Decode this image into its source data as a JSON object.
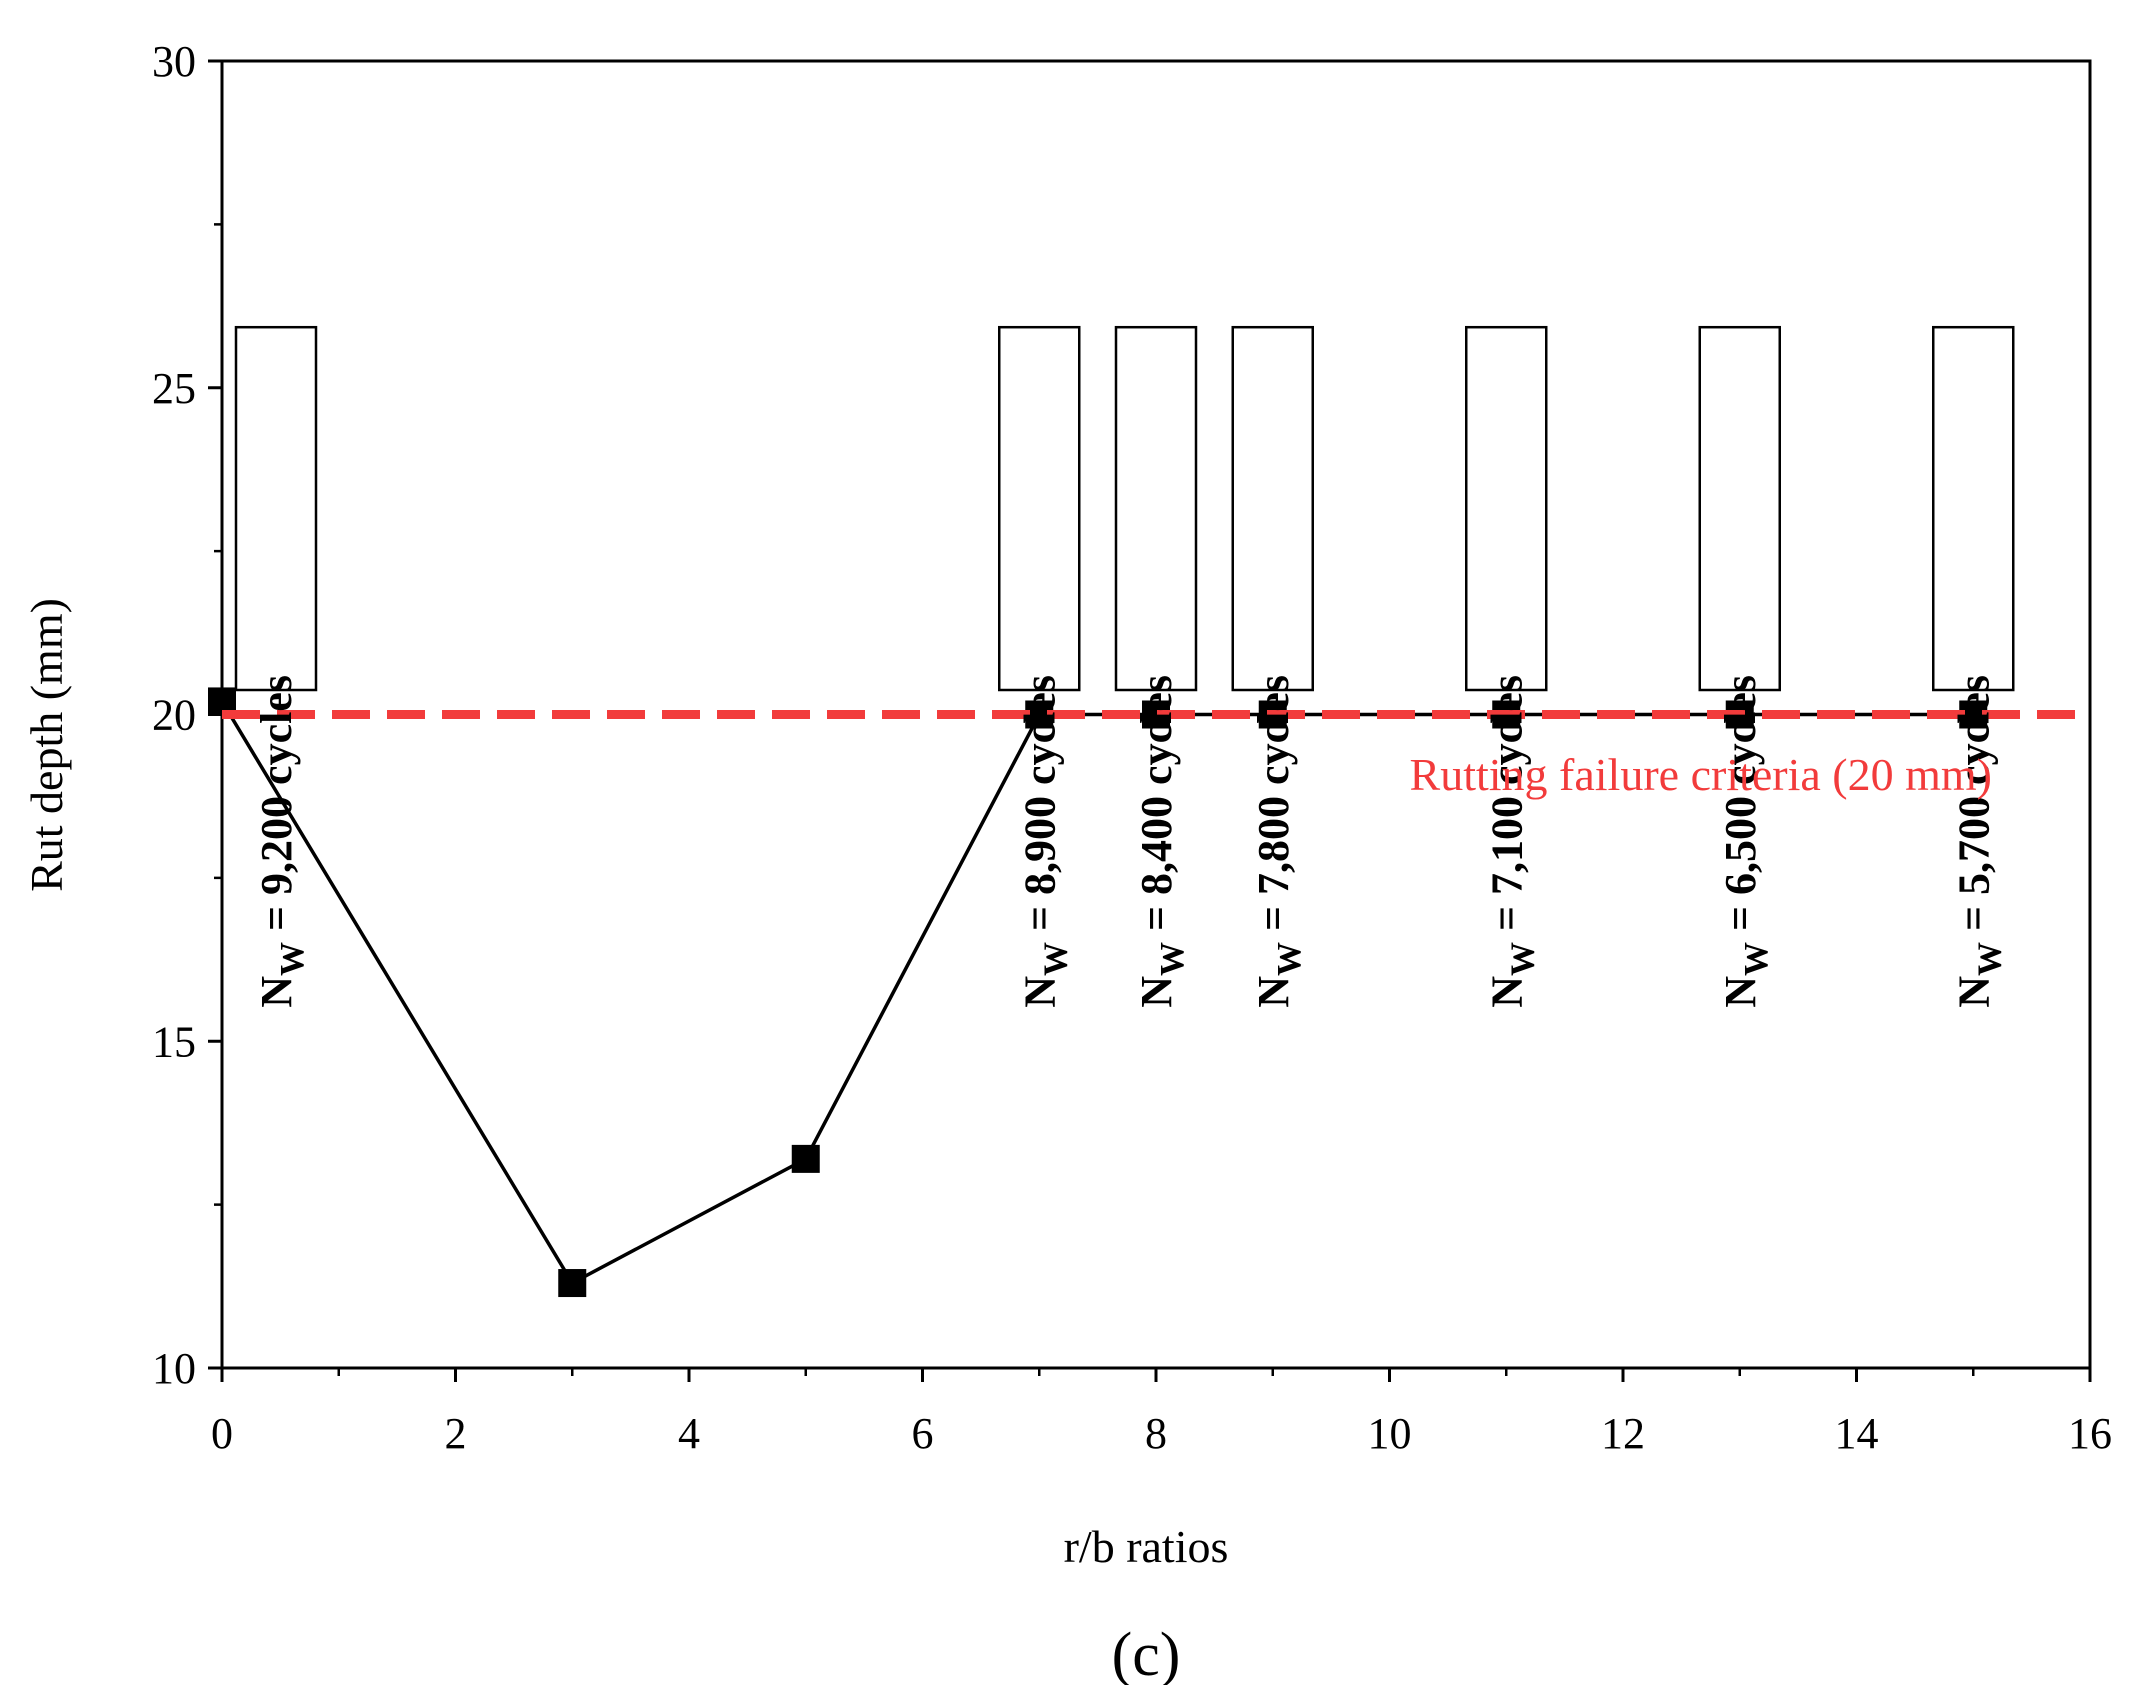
{
  "chart_data": {
    "type": "line",
    "title": "",
    "xlabel": "r/b ratios",
    "ylabel": "Rut depth (mm)",
    "panel_label": "(c)",
    "xlim": [
      0,
      16
    ],
    "ylim": [
      10,
      30
    ],
    "x_major_ticks": [
      0,
      2,
      4,
      6,
      8,
      10,
      12,
      14,
      16
    ],
    "x_tick_labels": [
      "0",
      "2",
      "4",
      "6",
      "8",
      "10",
      "12",
      "14",
      "16"
    ],
    "x_minor_ticks": [
      1,
      3,
      5,
      7,
      9,
      11,
      13,
      15
    ],
    "y_major_ticks": [
      10,
      15,
      20,
      25,
      30
    ],
    "y_tick_labels": [
      "10",
      "15",
      "20",
      "25",
      "30"
    ],
    "y_minor_ticks": [
      12.5,
      17.5,
      22.5,
      27.5
    ],
    "grid": false,
    "series": [
      {
        "name": "Rut depth",
        "color": "#000000",
        "marker": "square",
        "x": [
          0,
          3,
          5,
          7,
          8,
          9,
          11,
          13,
          15
        ],
        "y": [
          20.2,
          11.3,
          13.2,
          20.0,
          20.0,
          20.0,
          20.0,
          20.0,
          20.0
        ]
      }
    ],
    "reference_line": {
      "y": 20,
      "color": "#f23b3b",
      "style": "dashed",
      "label": "Rutting failure criteria (20 mm)"
    },
    "annotations": [
      {
        "x": 0,
        "prefix": "N",
        "subscript": "W",
        "text": " = 9,200 cycles"
      },
      {
        "x": 7,
        "prefix": "N",
        "subscript": "W",
        "text": " = 8,900 cycles"
      },
      {
        "x": 8,
        "prefix": "N",
        "subscript": "W",
        "text": " = 8,400 cycles"
      },
      {
        "x": 9,
        "prefix": "N",
        "subscript": "W",
        "text": " = 7,800 cycles"
      },
      {
        "x": 11,
        "prefix": "N",
        "subscript": "W",
        "text": " = 7,100 cycles"
      },
      {
        "x": 13,
        "prefix": "N",
        "subscript": "W",
        "text": " = 6,500 cycles"
      },
      {
        "x": 15,
        "prefix": "N",
        "subscript": "W",
        "text": " = 5,700 cycles"
      }
    ]
  }
}
